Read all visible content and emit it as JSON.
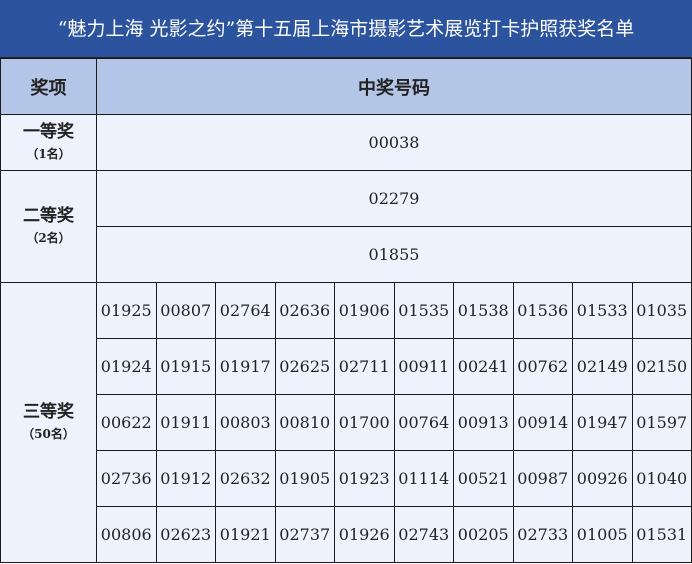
{
  "title": "“魅力上海  光影之约”第十五届上海市摄影艺术展览打卡护照获奖名单",
  "header": {
    "col_prize": "奖项",
    "col_numbers": "中奖号码"
  },
  "first_prize": {
    "label": "一等奖",
    "count": "（1名）",
    "numbers": [
      "00038"
    ]
  },
  "second_prize": {
    "label": "二等奖",
    "count": "（2名）",
    "numbers": [
      "02279",
      "01855"
    ]
  },
  "third_prize": {
    "label": "三等奖",
    "count": "（50名）",
    "numbers": [
      "01925",
      "00807",
      "02764",
      "02636",
      "01906",
      "01535",
      "01538",
      "01536",
      "01533",
      "01035",
      "01924",
      "01915",
      "01917",
      "02625",
      "02711",
      "00911",
      "00241",
      "00762",
      "02149",
      "02150",
      "00622",
      "01911",
      "00803",
      "00810",
      "01700",
      "00764",
      "00913",
      "00914",
      "01947",
      "01597",
      "02736",
      "01912",
      "02632",
      "01905",
      "01923",
      "01114",
      "00521",
      "00987",
      "00926",
      "01040",
      "00806",
      "02623",
      "01921",
      "02737",
      "01926",
      "02743",
      "00205",
      "02733",
      "01005",
      "01531"
    ]
  },
  "colors": {
    "title_bg": "#2C539E",
    "header_bg": "#B4C6E7",
    "cell_bg": "#EEF2FC"
  }
}
